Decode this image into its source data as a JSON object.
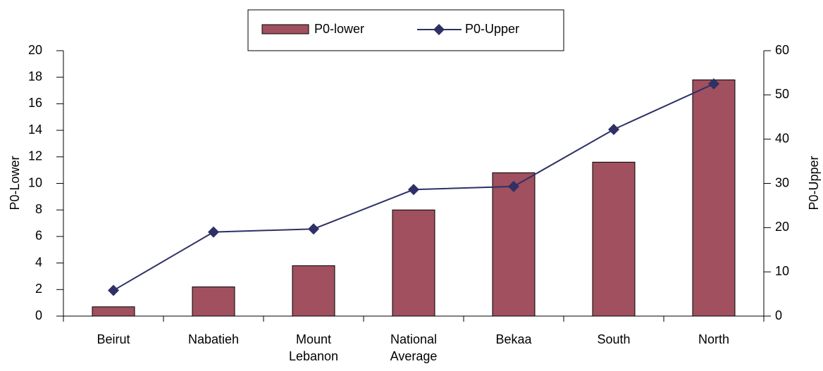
{
  "chart_data": {
    "type": "bar",
    "categories": [
      "Beirut",
      "Nabatieh",
      "Mount Lebanon",
      "National Average",
      "Bekaa",
      "South",
      "North"
    ],
    "series": [
      {
        "name": "P0-lower",
        "type": "bar",
        "color": "#a0505e",
        "values": [
          0.7,
          2.2,
          3.8,
          8.0,
          10.8,
          11.6,
          17.8
        ]
      },
      {
        "name": "P0-Upper",
        "type": "line",
        "color": "#2e3066",
        "axis": "y2",
        "values": [
          5.8,
          19.0,
          19.7,
          28.6,
          29.3,
          42.2,
          52.5
        ]
      }
    ],
    "ylabel": "P0-Lower",
    "y2label": "P0-Upper",
    "ylim": [
      0,
      20
    ],
    "yticks": [
      0,
      2,
      4,
      6,
      8,
      10,
      12,
      14,
      16,
      18,
      20
    ],
    "y2lim": [
      0,
      60
    ],
    "y2ticks": [
      0,
      10,
      20,
      30,
      40,
      50,
      60
    ],
    "grid": false,
    "legend": "top"
  }
}
